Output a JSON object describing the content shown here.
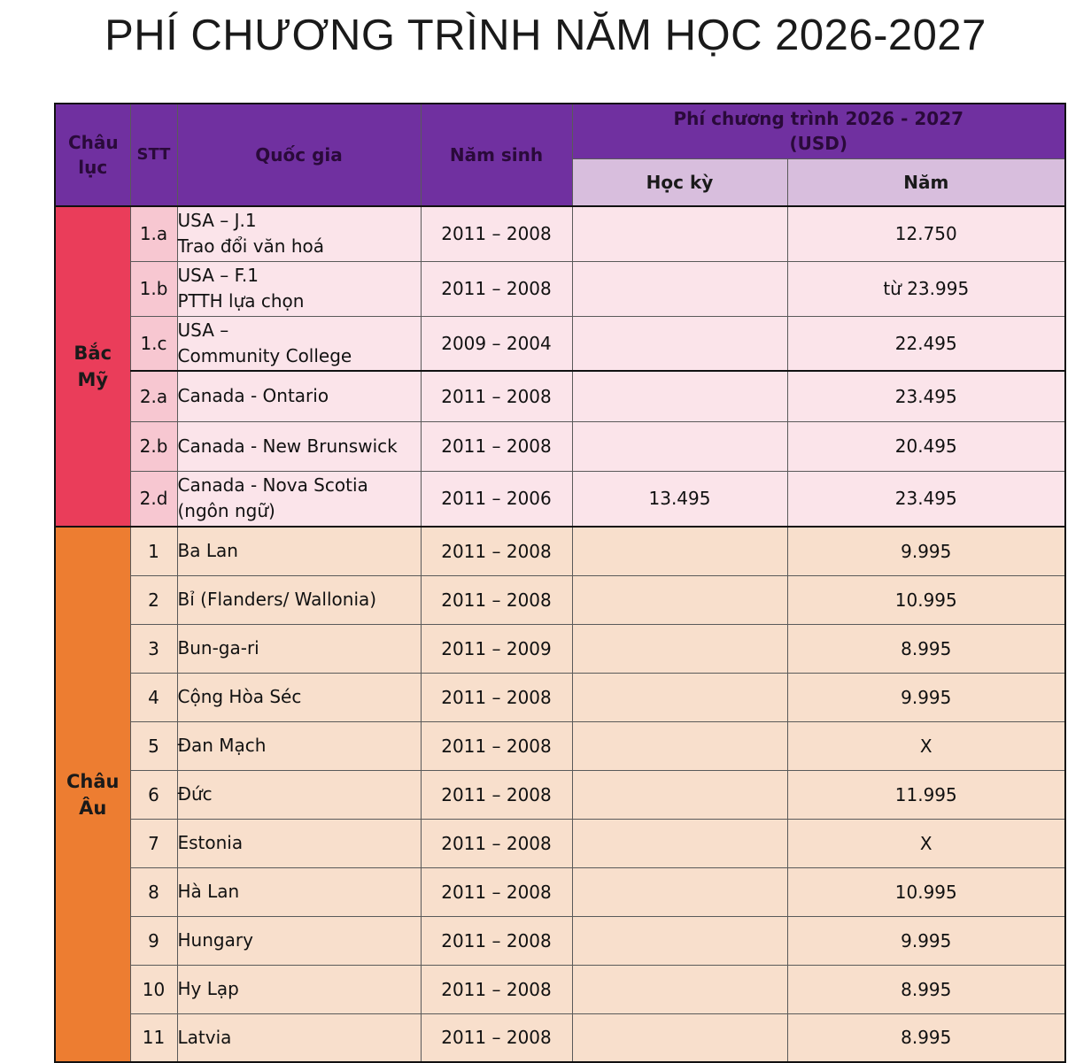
{
  "title": "PHÍ CHƯƠNG TRÌNH NĂM HỌC 2026-2027",
  "colors": {
    "header": "#7030a0",
    "subheader": "#d8bedd",
    "north_america": "#ea3d5a",
    "europe": "#ed7d31"
  },
  "header": {
    "continent": "Châu lục",
    "stt": "STT",
    "country": "Quốc gia",
    "birth_year": "Năm sinh",
    "fee_title": "Phí chương trình 2026 - 2027",
    "fee_unit": "(USD)",
    "semester": "Học kỳ",
    "year": "Năm"
  },
  "regions": [
    {
      "name_line1": "Bắc",
      "name_line2": "Mỹ",
      "rows": [
        {
          "stt": "1.a",
          "country_line1": "USA – J.1",
          "country_line2": "Trao đổi văn hoá",
          "birth": "2011 – 2008",
          "semester": "",
          "year": "12.750"
        },
        {
          "stt": "1.b",
          "country_line1": "USA – F.1",
          "country_line2": "PTTH lựa chọn",
          "birth": "2011 – 2008",
          "semester": "",
          "year": "từ 23.995"
        },
        {
          "stt": "1.c",
          "country_line1": "USA –",
          "country_line2": "Community College",
          "birth": "2009 – 2004",
          "semester": "",
          "year": "22.495"
        },
        {
          "stt": "2.a",
          "country_line1": "Canada - Ontario",
          "country_line2": "",
          "birth": "2011 – 2008",
          "semester": "",
          "year": "23.495"
        },
        {
          "stt": "2.b",
          "country_line1": "Canada - New Brunswick",
          "country_line2": "",
          "birth": "2011 – 2008",
          "semester": "",
          "year": "20.495"
        },
        {
          "stt": "2.d",
          "country_line1": "Canada - Nova Scotia",
          "country_line2": "(ngôn ngữ)",
          "birth": "2011 – 2006",
          "semester": "13.495",
          "year": "23.495"
        }
      ]
    },
    {
      "name_line1": "Châu",
      "name_line2": "Âu",
      "rows": [
        {
          "stt": "1",
          "country": "Ba Lan",
          "birth": "2011 – 2008",
          "semester": "",
          "year": "9.995"
        },
        {
          "stt": "2",
          "country": "Bỉ (Flanders/ Wallonia)",
          "birth": "2011 – 2008",
          "semester": "",
          "year": "10.995"
        },
        {
          "stt": "3",
          "country": "Bun-ga-ri",
          "birth": "2011 – 2009",
          "semester": "",
          "year": "8.995"
        },
        {
          "stt": "4",
          "country": "Cộng Hòa Séc",
          "birth": "2011 – 2008",
          "semester": "",
          "year": "9.995"
        },
        {
          "stt": "5",
          "country": "Đan Mạch",
          "birth": "2011 – 2008",
          "semester": "",
          "year": "X"
        },
        {
          "stt": "6",
          "country": "Đức",
          "birth": "2011 – 2008",
          "semester": "",
          "year": "11.995"
        },
        {
          "stt": "7",
          "country": "Estonia",
          "birth": "2011 – 2008",
          "semester": "",
          "year": "X"
        },
        {
          "stt": "8",
          "country": "Hà Lan",
          "birth": "2011 – 2008",
          "semester": "",
          "year": "10.995"
        },
        {
          "stt": "9",
          "country": "Hungary",
          "birth": "2011 – 2008",
          "semester": "",
          "year": "9.995"
        },
        {
          "stt": "10",
          "country": "Hy Lạp",
          "birth": "2011 – 2008",
          "semester": "",
          "year": "8.995"
        },
        {
          "stt": "11",
          "country": "Latvia",
          "birth": "2011 – 2008",
          "semester": "",
          "year": "8.995"
        }
      ]
    }
  ]
}
